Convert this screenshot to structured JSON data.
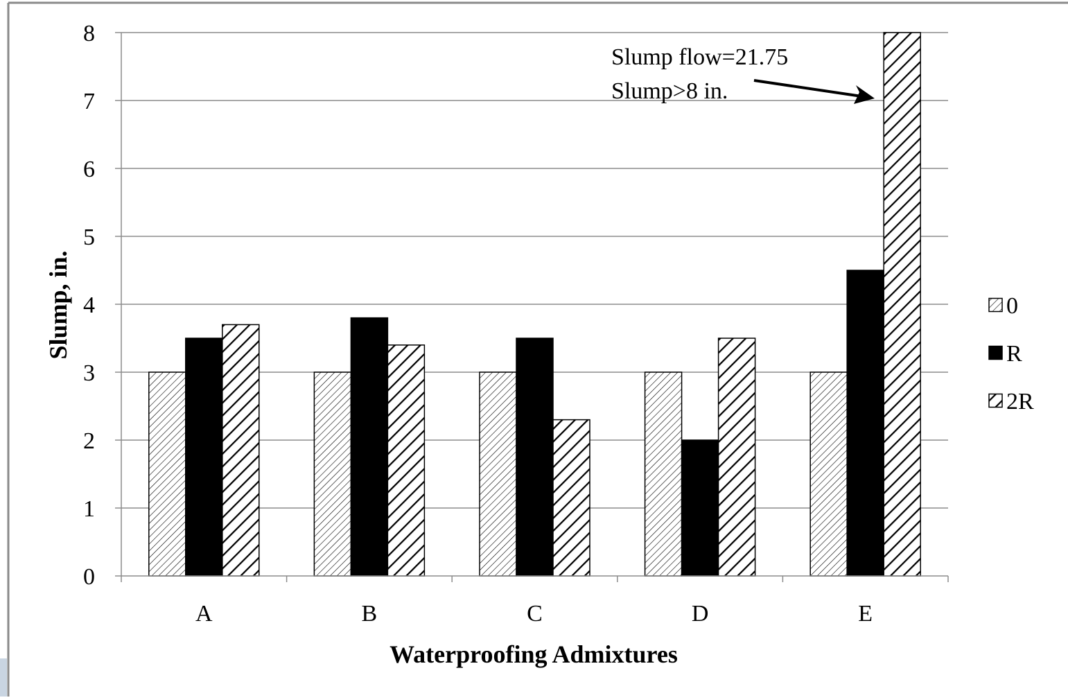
{
  "chart_data": {
    "type": "bar",
    "categories": [
      "A",
      "B",
      "C",
      "D",
      "E"
    ],
    "series": [
      {
        "name": "0",
        "values": [
          3,
          3,
          3,
          3,
          3
        ],
        "pattern": "fine-hatch"
      },
      {
        "name": "R",
        "values": [
          3.5,
          3.8,
          3.5,
          2.0,
          4.5
        ],
        "pattern": "solid"
      },
      {
        "name": "2R",
        "values": [
          3.7,
          3.4,
          2.3,
          3.5,
          8.0
        ],
        "pattern": "wide-hatch"
      }
    ],
    "title": "",
    "xlabel": "Waterproofing Admixtures",
    "ylabel": "Slump, in.",
    "ylim": [
      0,
      8
    ],
    "yticks": [
      0,
      1,
      2,
      3,
      4,
      5,
      6,
      7,
      8
    ],
    "grid": true,
    "legend_position": "right",
    "annotation": {
      "lines": [
        "Slump flow=21.75",
        "Slump>8 in."
      ],
      "points_to": {
        "category": "E",
        "series": "2R"
      }
    }
  },
  "colors": {
    "bar_fill_solid": "#000000",
    "grid": "#8c8c8c",
    "frame": "#8a8a8a",
    "corner_accent": "#c9d5e2"
  }
}
